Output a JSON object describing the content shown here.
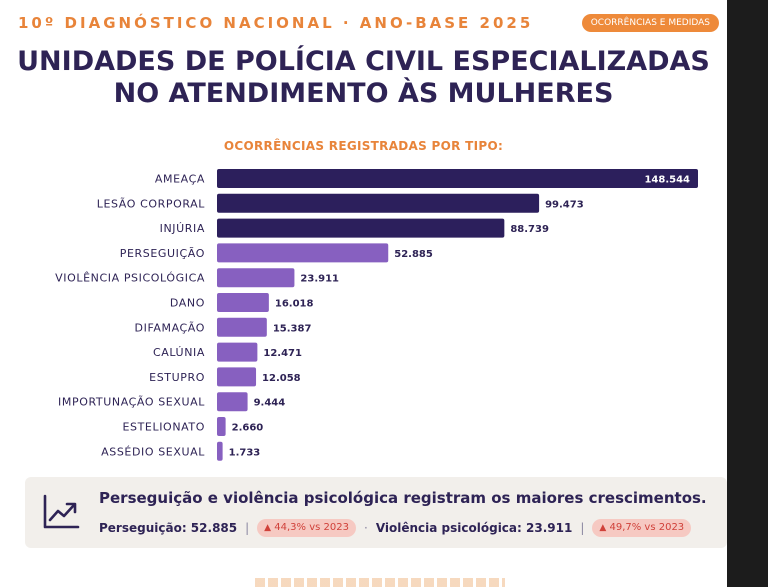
{
  "header": {
    "kicker": "10º DIAGNÓSTICO NACIONAL · ANO-BASE 2025",
    "badge": "OCORRÊNCIAS E MEDIDAS",
    "title_line1": "UNIDADES DE POLÍCIA CIVIL ESPECIALIZADAS",
    "title_line2": "NO ATENDIMENTO ÀS MULHERES"
  },
  "chart_data": {
    "type": "bar",
    "orientation": "horizontal",
    "title": "OCORRÊNCIAS REGISTRADAS POR TIPO:",
    "categories": [
      "AMEAÇA",
      "LESÃO CORPORAL",
      "INJÚRIA",
      "PERSEGUIÇÃO",
      "VIOLÊNCIA PSICOLÓGICA",
      "DANO",
      "DIFAMAÇÃO",
      "CALÚNIA",
      "ESTUPRO",
      "IMPORTUNAÇÃO SEXUAL",
      "ESTELIONATO",
      "ASSÉDIO SEXUAL"
    ],
    "values": [
      148544,
      99473,
      88739,
      52885,
      23911,
      16018,
      15387,
      12471,
      12058,
      9444,
      2660,
      1733
    ],
    "value_labels": [
      "148.544",
      "99.473",
      "88.739",
      "52.885",
      "23.911",
      "16.018",
      "15.387",
      "12.471",
      "12.058",
      "9.444",
      "2.660",
      "1.733"
    ],
    "xlim": [
      0,
      148544
    ],
    "grid": false,
    "colors": {
      "dark": "#2c1f5c",
      "light": "#8760c0"
    },
    "dark_count": 3
  },
  "callout": {
    "icon": "trending-up-icon",
    "title": "Perseguição e violência psicológica registram os maiores crescimentos.",
    "stat1_label": "Perseguição: 52.885",
    "stat1_change": "44,3% vs 2023",
    "stat2_label": "Violência psicológica: 23.911",
    "stat2_change": "49,7% vs 2023",
    "separator": "|",
    "dot": "·",
    "up_arrow": "▲"
  }
}
